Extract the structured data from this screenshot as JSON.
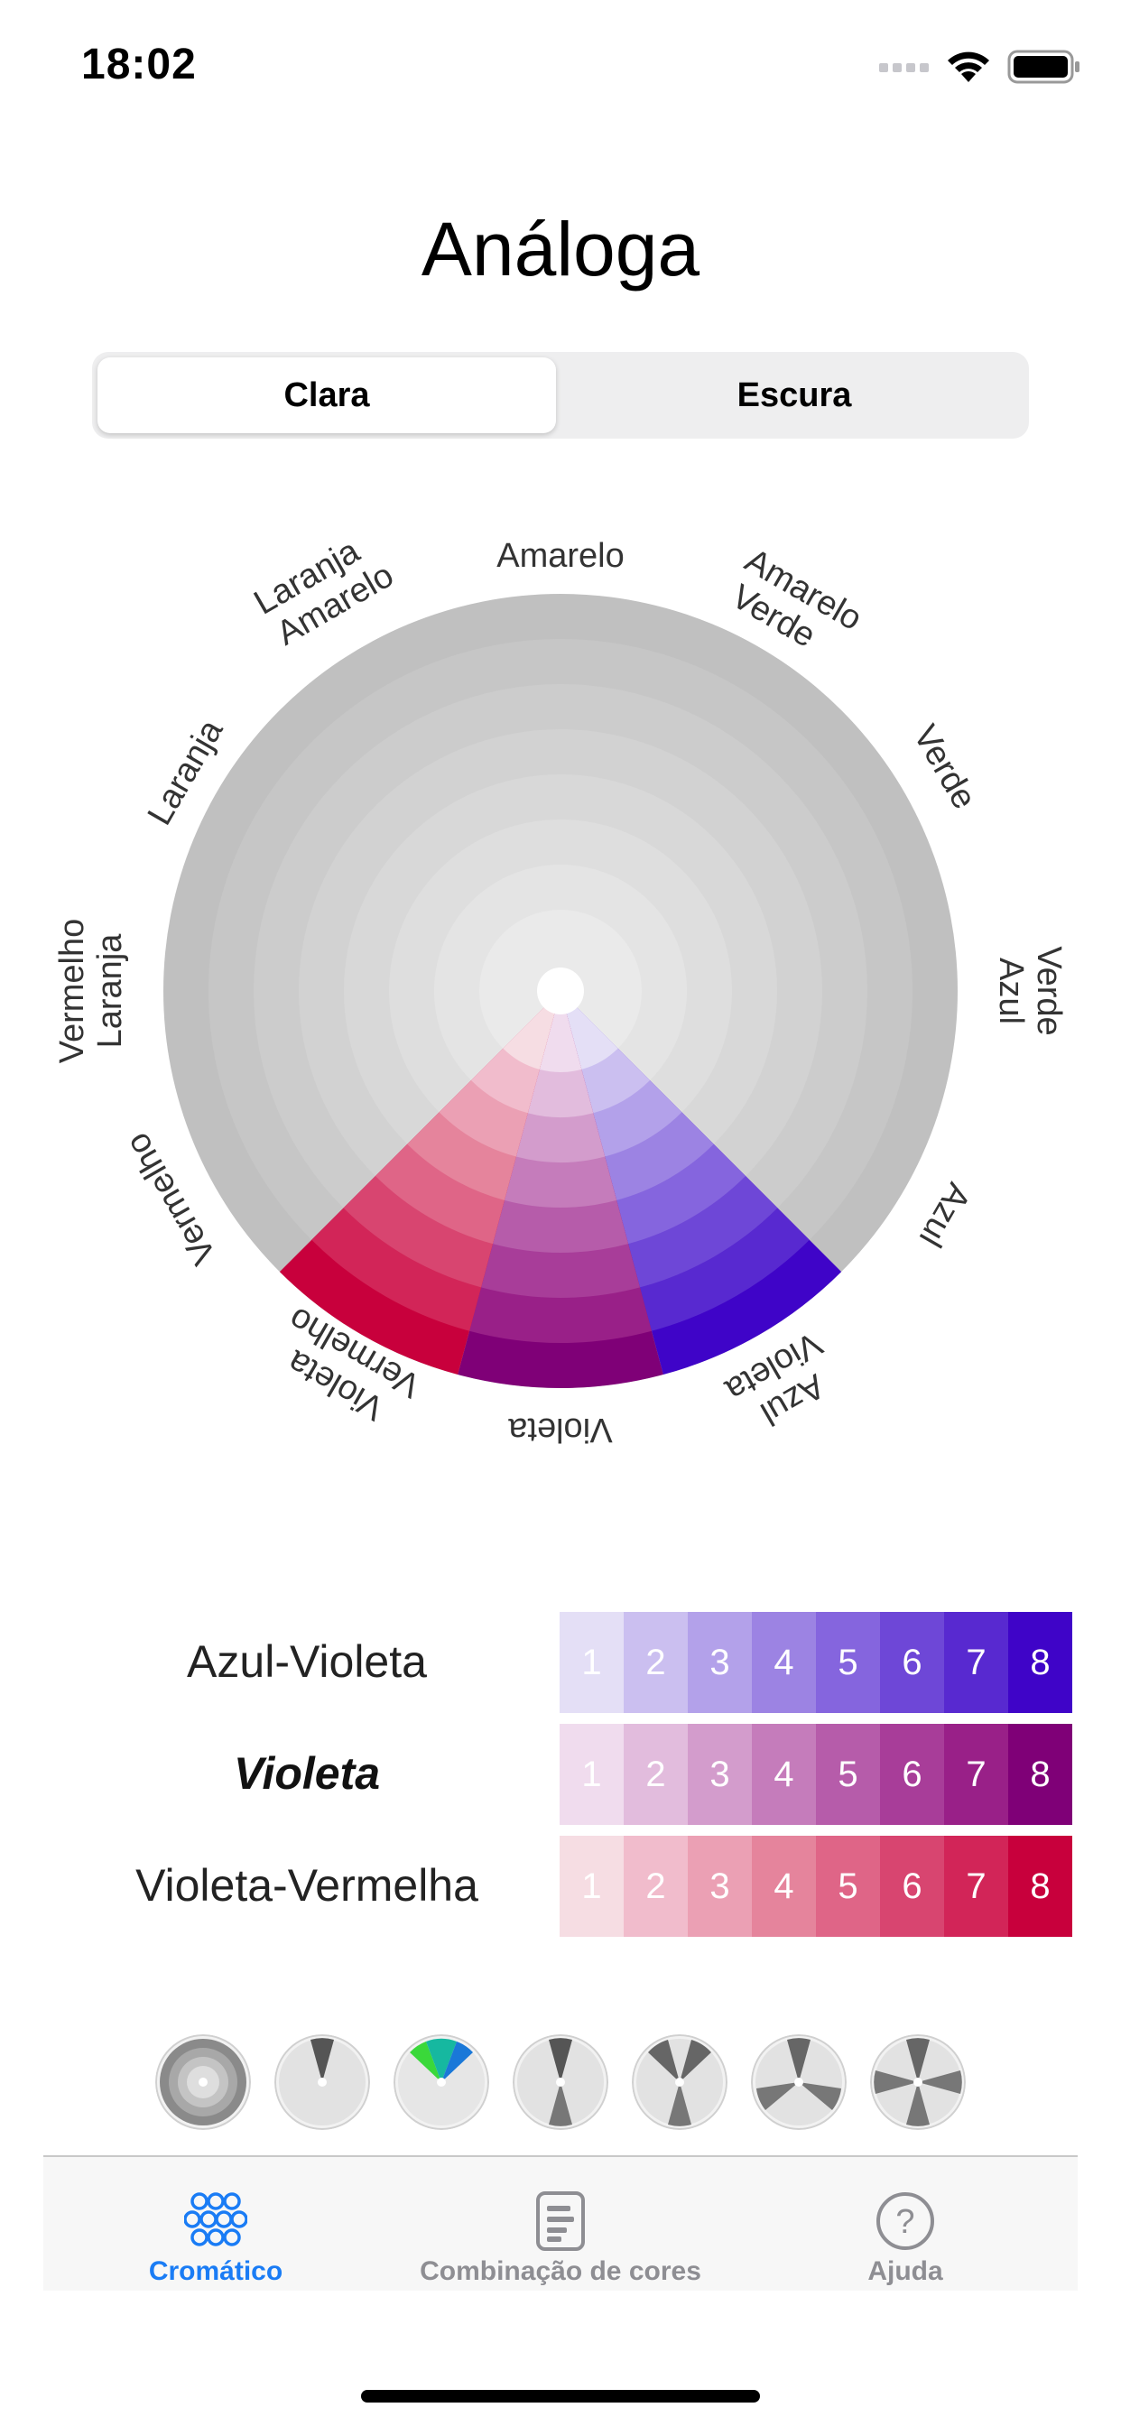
{
  "status": {
    "time": "18:02"
  },
  "title": "Análoga",
  "segmented": {
    "selected": "Clara",
    "other": "Escura"
  },
  "wheel": {
    "labels": {
      "amarelo": "Amarelo",
      "amarelo_verde_1": "Amarelo",
      "amarelo_verde_2": "Verde",
      "verde": "Verde",
      "verde_azul_1": "Verde",
      "verde_azul_2": "Azul",
      "azul": "Azul",
      "azul_violeta_1": "Azul",
      "azul_violeta_2": "Violeta",
      "violeta": "Violeta",
      "violeta_vermelho_1": "Violeta",
      "violeta_vermelho_2": "Vermelho",
      "vermelho": "Vermelho",
      "vermelho_laranja_1": "Vermelho",
      "vermelho_laranja_2": "Laranja",
      "laranja": "Laranja",
      "laranja_amarelo_1": "Laranja",
      "laranja_amarelo_2": "Amarelo"
    }
  },
  "rows": [
    {
      "label": "Azul-Violeta",
      "emphasis": false,
      "swatches": [
        "1",
        "2",
        "3",
        "4",
        "5",
        "6",
        "7",
        "8"
      ],
      "colors": [
        "#e4dff6",
        "#cbbff0",
        "#b3a1ea",
        "#9c83e3",
        "#8565de",
        "#6e47d7",
        "#5829d0",
        "#3f04c8"
      ]
    },
    {
      "label": "Violeta",
      "emphasis": true,
      "swatches": [
        "1",
        "2",
        "3",
        "4",
        "5",
        "6",
        "7",
        "8"
      ],
      "colors": [
        "#f0dcee",
        "#e2bcdd",
        "#d39ccc",
        "#c57cbb",
        "#b65caa",
        "#a83d99",
        "#992088",
        "#7f0077"
      ]
    },
    {
      "label": "Violeta-Vermelha",
      "emphasis": false,
      "swatches": [
        "1",
        "2",
        "3",
        "4",
        "5",
        "6",
        "7",
        "8"
      ],
      "colors": [
        "#f6dde3",
        "#f1bccc",
        "#eba0b4",
        "#e5849c",
        "#df6587",
        "#d84570",
        "#d22558",
        "#c8003c"
      ]
    }
  ],
  "tabbar": {
    "tabs": [
      {
        "label": "Cromático",
        "active": true
      },
      {
        "label": "Combinação de cores",
        "active": false
      },
      {
        "label": "Ajuda",
        "active": false
      }
    ]
  },
  "colors": {
    "accent": "#1a7cf5",
    "inactive": "#8e8e93"
  }
}
